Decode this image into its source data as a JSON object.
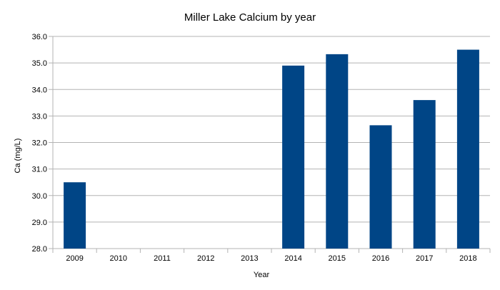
{
  "chart_data": {
    "type": "bar",
    "title": "Miller Lake Calcium by year",
    "xlabel": "Year",
    "ylabel": "Ca (mg/L)",
    "categories": [
      "2009",
      "2010",
      "2011",
      "2012",
      "2013",
      "2014",
      "2015",
      "2016",
      "2017",
      "2018"
    ],
    "values": [
      30.5,
      null,
      null,
      null,
      null,
      34.9,
      35.33,
      32.65,
      33.6,
      35.5
    ],
    "ylim": [
      28.0,
      36.0
    ],
    "yticks": [
      "28.0",
      "29.0",
      "30.0",
      "31.0",
      "32.0",
      "33.0",
      "34.0",
      "35.0",
      "36.0"
    ],
    "grid": true,
    "legend": "none",
    "bar_color": "#004586"
  }
}
